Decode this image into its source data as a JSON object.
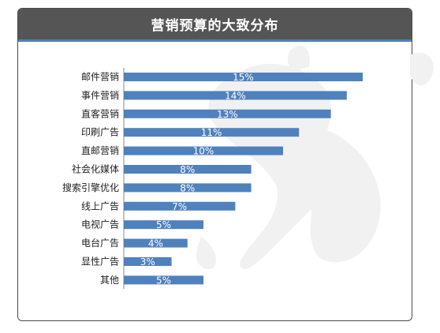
{
  "chart_data": {
    "type": "bar",
    "orientation": "horizontal",
    "title": "营销预算的大致分布",
    "categories": [
      "邮件营销",
      "事件营销",
      "直客营销",
      "印刷广告",
      "直邮营销",
      "社会化媒体",
      "搜索引擎优化",
      "线上广告",
      "电视广告",
      "电台广告",
      "显性广告",
      "其他"
    ],
    "values": [
      15,
      14,
      13,
      11,
      10,
      8,
      8,
      7,
      5,
      4,
      3,
      5
    ],
    "value_labels": [
      "15%",
      "14%",
      "13%",
      "11%",
      "10%",
      "8%",
      "8%",
      "7%",
      "5%",
      "4%",
      "3%",
      "5%"
    ],
    "unit": "%",
    "xlim": [
      0,
      15
    ],
    "grid": false,
    "legend": "none"
  },
  "colors": {
    "bar": "#4f81bd",
    "title_bar": "#555555",
    "title_underline": "#4f81bd",
    "axis": "#888888"
  }
}
